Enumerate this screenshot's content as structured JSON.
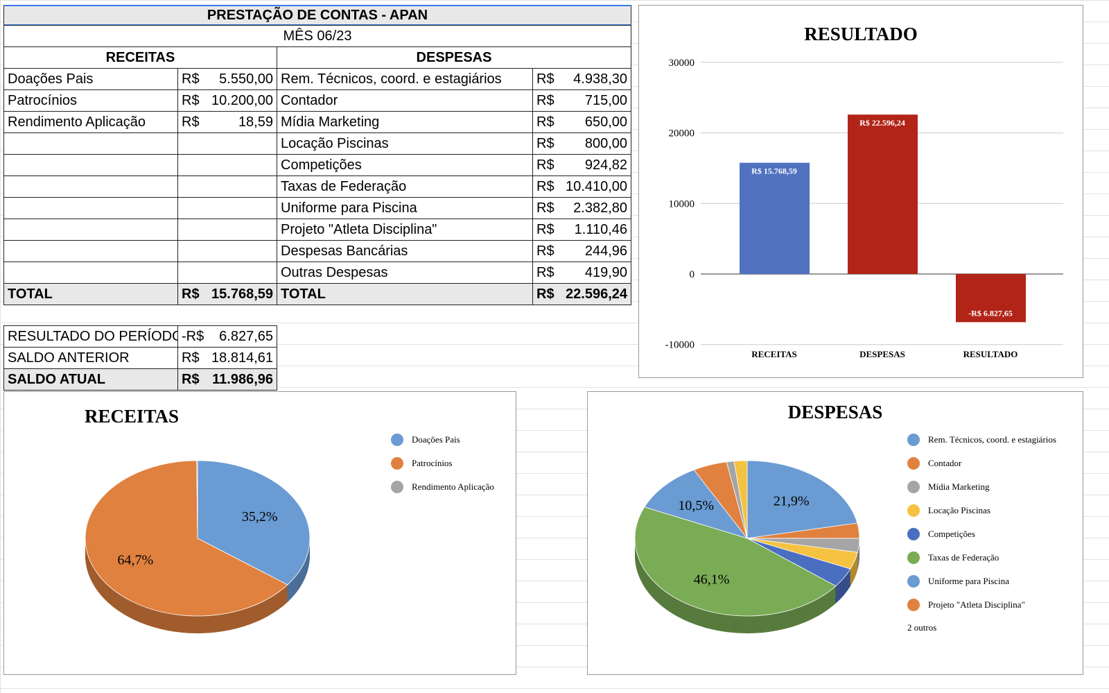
{
  "sheet": {
    "title": "PRESTAÇÃO DE CONTAS - APAN",
    "month": "MÊS 06/23",
    "receitas_header": "RECEITAS",
    "despesas_header": "DESPESAS",
    "receitas": [
      {
        "label": "Doações Pais",
        "cur": "R$",
        "value": "5.550,00"
      },
      {
        "label": "Patrocínios",
        "cur": "R$",
        "value": "10.200,00"
      },
      {
        "label": "Rendimento Aplicação",
        "cur": "R$",
        "value": "18,59"
      }
    ],
    "despesas": [
      {
        "label": "Rem. Técnicos, coord. e estagiários",
        "cur": "R$",
        "value": "4.938,30"
      },
      {
        "label": "Contador",
        "cur": "R$",
        "value": "715,00"
      },
      {
        "label": "Mídia Marketing",
        "cur": "R$",
        "value": "650,00"
      },
      {
        "label": "Locação Piscinas",
        "cur": "R$",
        "value": "800,00"
      },
      {
        "label": "Competições",
        "cur": "R$",
        "value": "924,82"
      },
      {
        "label": "Taxas de Federação",
        "cur": "R$",
        "value": "10.410,00"
      },
      {
        "label": "Uniforme para Piscina",
        "cur": "R$",
        "value": "2.382,80"
      },
      {
        "label": "Projeto \"Atleta Disciplina\"",
        "cur": "R$",
        "value": "1.110,46"
      },
      {
        "label": "Despesas Bancárias",
        "cur": "R$",
        "value": "244,96"
      },
      {
        "label": "Outras Despesas",
        "cur": "R$",
        "value": "419,90"
      }
    ],
    "total_label": "TOTAL",
    "receitas_total": {
      "cur": "R$",
      "value": "15.768,59"
    },
    "despesas_total": {
      "cur": "R$",
      "value": "22.596,24"
    },
    "summary": [
      {
        "label": "RESULTADO DO PERÍODO",
        "cur": "-R$",
        "value": "6.827,65"
      },
      {
        "label": "SALDO ANTERIOR",
        "cur": "R$",
        "value": "18.814,61"
      },
      {
        "label": "SALDO ATUAL",
        "cur": "R$",
        "value": "11.986,96"
      }
    ]
  },
  "chart_data": [
    {
      "type": "bar",
      "title": "RESULTADO",
      "categories": [
        "RECEITAS",
        "DESPESAS",
        "RESULTADO"
      ],
      "values": [
        15768.59,
        22596.24,
        -6827.65
      ],
      "data_labels": [
        "R$  15.768,59",
        "R$  22.596,24",
        "-R$  6.827,65"
      ],
      "colors": [
        "#5072bf",
        "#b22418",
        "#b22418"
      ],
      "ylim": [
        -10000,
        30000
      ],
      "yticks": [
        30000,
        20000,
        10000,
        0,
        -10000
      ],
      "grid": true
    },
    {
      "type": "pie",
      "title": "RECEITAS",
      "labels": [
        "Doações Pais",
        "Patrocínios",
        "Rendimento Aplicação"
      ],
      "values": [
        5550.0,
        10200.0,
        18.59
      ],
      "data_labels": [
        "35,2%",
        "64,7%",
        ""
      ],
      "colors": [
        "#6a9bd3",
        "#e0813f",
        "#a5a5a5"
      ],
      "legend": "right"
    },
    {
      "type": "pie",
      "title": "DESPESAS",
      "labels": [
        "Rem. Técnicos, coord. e estagiários",
        "Contador",
        "Mídia Marketing",
        "Locação Piscinas",
        "Competições",
        "Taxas de Federação",
        "Uniforme para Piscina",
        "Projeto \"Atleta Disciplina\"",
        "Despesas Bancárias",
        "Outras Despesas"
      ],
      "values": [
        4938.3,
        715.0,
        650.0,
        800.0,
        924.82,
        10410.0,
        2382.8,
        1110.46,
        244.96,
        419.9
      ],
      "data_labels": [
        "21,9%",
        "",
        "",
        "",
        "",
        "46,1%",
        "10,5%",
        "",
        "",
        ""
      ],
      "colors": [
        "#6a9bd3",
        "#e0813f",
        "#a5a5a5",
        "#f5c242",
        "#4a6fc1",
        "#7aab55",
        "#6a9bd3",
        "#e0813f",
        "#a5a5a5",
        "#f5c242"
      ],
      "legend": "right",
      "legend_more": "2 outros"
    }
  ]
}
